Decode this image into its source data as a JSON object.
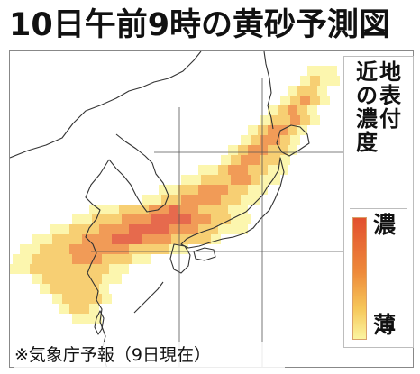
{
  "title": "10日午前9時の黄砂予測図",
  "legend": {
    "title_columns": [
      "地表付",
      "近の濃度"
    ],
    "high_label": "濃",
    "low_label": "薄",
    "gradient_colors": [
      "#e2502e",
      "#ee8a3a",
      "#f6c75a",
      "#fbf4a0"
    ]
  },
  "source": "※気象庁予報（9日現在）",
  "colors": {
    "dense": "#e2502e",
    "medium": "#ee8a3a",
    "light": "#f6c75a",
    "faint": "#fbf4a0",
    "coastline": "#333333",
    "gridline": "#555555"
  }
}
